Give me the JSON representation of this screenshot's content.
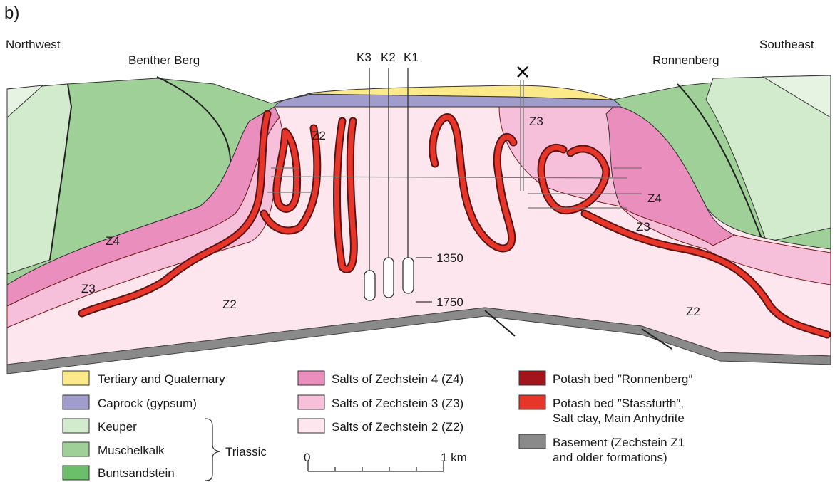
{
  "panel_label": "b)",
  "section": {
    "directions": [
      "Northwest",
      "Southeast"
    ],
    "places": [
      "Benther Berg",
      "Ronnenberg"
    ],
    "wells": [
      "K3",
      "K2",
      "K1"
    ],
    "depths": [
      "1350",
      "1750"
    ],
    "zones": [
      "Z2",
      "Z3",
      "Z4",
      "Z3",
      "Z4",
      "Z3",
      "Z2",
      "Z2"
    ]
  },
  "legend": {
    "items": [
      {
        "lines": [
          "Tertiary and Quaternary"
        ]
      },
      {
        "lines": [
          "Caprock (gypsum)"
        ]
      },
      {
        "lines": [
          "Keuper"
        ]
      },
      {
        "lines": [
          "Muschelkalk"
        ]
      },
      {
        "lines": [
          "Buntsandstein"
        ]
      },
      {
        "lines": [
          "Salts of Zechstein 4 (Z4)"
        ]
      },
      {
        "lines": [
          "Salts of Zechstein 3 (Z3)"
        ]
      },
      {
        "lines": [
          "Salts of Zechstein 2 (Z2)"
        ]
      },
      {
        "lines": [
          "Potash bed ″Ronnenberg″"
        ]
      },
      {
        "lines": [
          "Potash bed ″Stassfurth″,",
          "Salt clay, Main Anhydrite"
        ]
      },
      {
        "lines": [
          "Basement (Zechstein Z1",
          "and older formations)"
        ]
      }
    ],
    "group_label": "Triassic"
  },
  "scale_bar": {
    "start": "0",
    "end": "1 km"
  }
}
